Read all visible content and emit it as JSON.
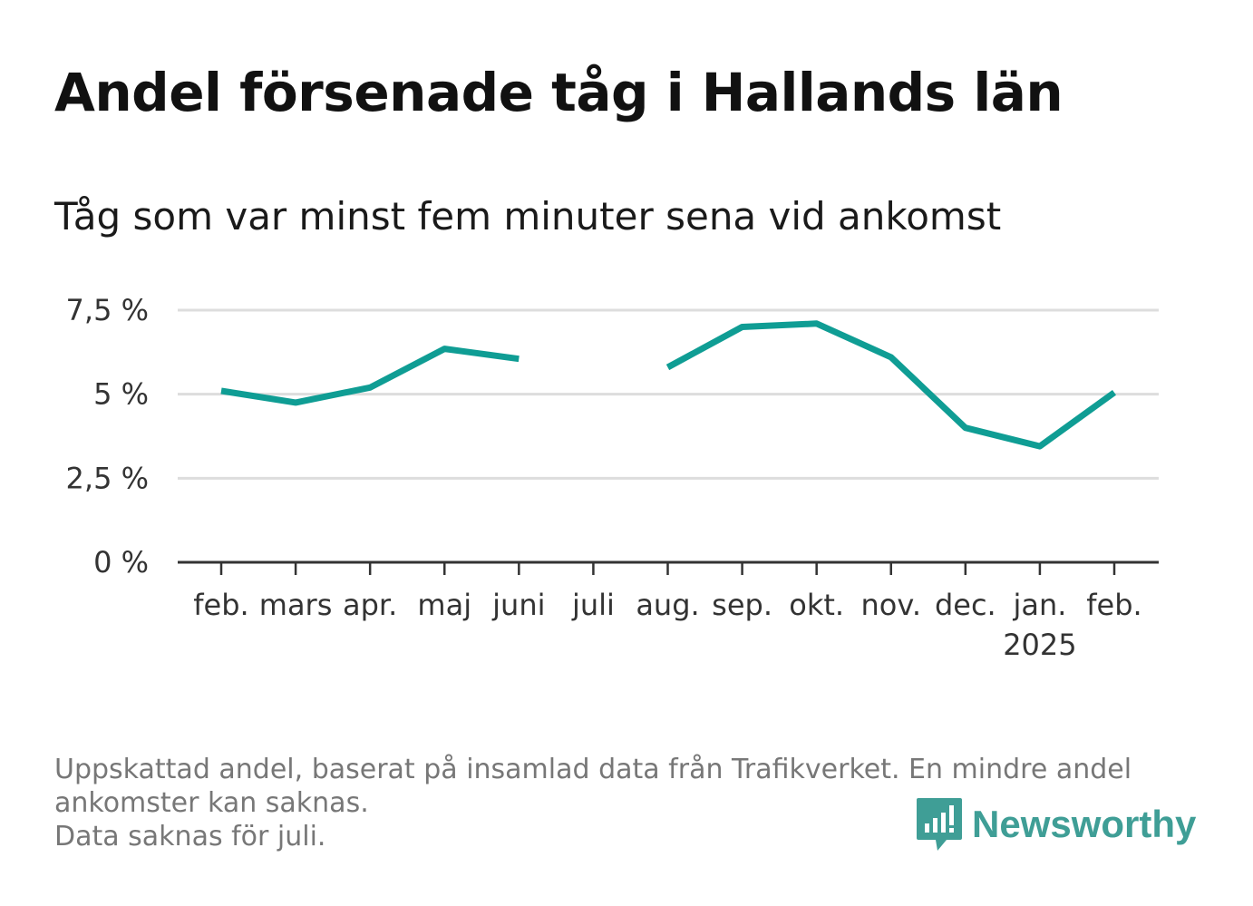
{
  "title": "Andel försenade tåg i Hallands län",
  "subtitle": "Tåg som var minst fem minuter sena vid ankomst",
  "footer": {
    "line1": "Uppskattad andel, baserat på insamlad data från Trafikverket. En mindre andel",
    "line2": "ankomster kan saknas.",
    "line3": "Data saknas för juli."
  },
  "brand": {
    "name": "Newsworthy",
    "icon": "bar-chart-speech-bubble-icon",
    "color": "#3f9e96"
  },
  "colors": {
    "line": "#0f9d94",
    "grid": "#dddddd",
    "axis": "#333333"
  },
  "chart_data": {
    "type": "line",
    "title": "Andel försenade tåg i Hallands län",
    "subtitle": "Tåg som var minst fem minuter sena vid ankomst",
    "categories": [
      "feb.",
      "mars",
      "apr.",
      "maj",
      "juni",
      "juli",
      "aug.",
      "sep.",
      "okt.",
      "nov.",
      "dec.",
      "jan.",
      "feb."
    ],
    "category_sublabels": [
      "",
      "",
      "",
      "",
      "",
      "",
      "",
      "",
      "",
      "",
      "",
      "2025",
      ""
    ],
    "values": [
      5.1,
      4.75,
      5.2,
      6.35,
      6.05,
      null,
      5.8,
      7.0,
      7.1,
      6.1,
      4.0,
      3.45,
      5.05
    ],
    "yticks": [
      0,
      2.5,
      5,
      7.5
    ],
    "ytick_labels": [
      "0 %",
      "2,5 %",
      "5 %",
      "7,5 %"
    ],
    "ylim": [
      0,
      7.5
    ],
    "xlabel": "",
    "ylabel": "",
    "grid": true,
    "legend": false
  }
}
